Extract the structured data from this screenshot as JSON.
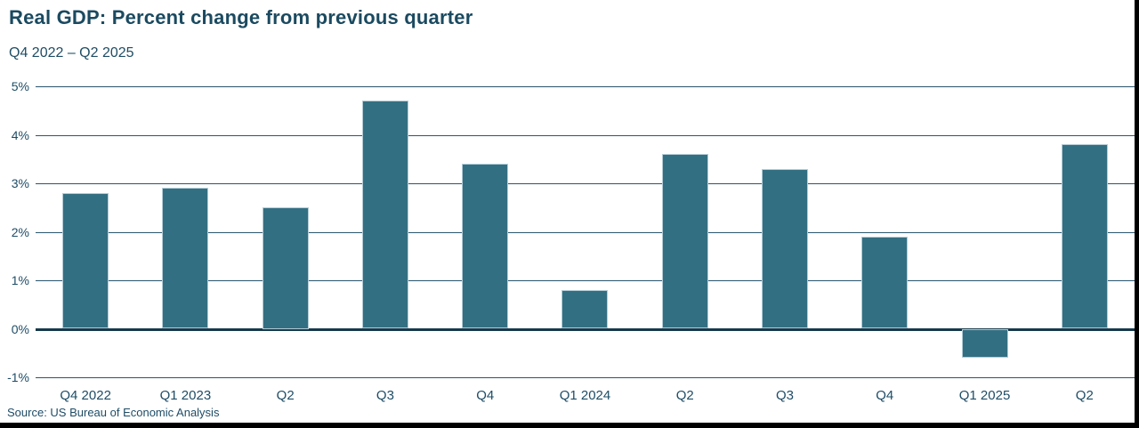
{
  "header": {
    "title": "Real GDP: Percent change from previous quarter",
    "subtitle": "Q4 2022 – Q2 2025"
  },
  "source_note": "Source: US Bureau of Economic Analysis",
  "colors": {
    "bar": "#336F82",
    "bar_edge": "#B4CCD6",
    "gridline": "#2A556E",
    "zero_line": "#16394B",
    "text": "#1E4C66",
    "frame": "#000000",
    "background": "#FFFFFF"
  },
  "chart_data": {
    "type": "bar",
    "title": "Real GDP: Percent change from previous quarter",
    "subtitle": "Q4 2022 – Q2 2025",
    "categories": [
      "Q4 2022",
      "Q1 2023",
      "Q2",
      "Q3",
      "Q4",
      "Q1 2024",
      "Q2",
      "Q3",
      "Q4",
      "Q1 2025",
      "Q2"
    ],
    "values": [
      2.8,
      2.9,
      2.5,
      4.7,
      3.4,
      0.8,
      3.6,
      3.3,
      1.9,
      -0.6,
      3.8
    ],
    "unit": "%",
    "xlabel": "",
    "ylabel": "",
    "ylim": [
      -1,
      5
    ],
    "ytick_values": [
      5,
      4,
      3,
      2,
      1,
      0,
      -1
    ],
    "ytick_labels": [
      "5%",
      "4%",
      "3%",
      "2%",
      "1%",
      "0%",
      "-1%"
    ],
    "grid": true,
    "legend": false
  }
}
